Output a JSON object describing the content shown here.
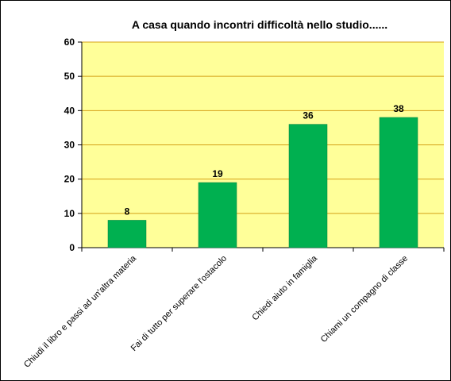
{
  "chart_data": {
    "type": "bar",
    "title": "A casa quando incontri difficoltà nello studio......",
    "xlabel": "",
    "ylabel": "",
    "ylim": [
      0,
      60
    ],
    "yticks": [
      0,
      10,
      20,
      30,
      40,
      50,
      60
    ],
    "grid": true,
    "legend": "none",
    "categories": [
      "Chiudi il libro e passi ad un'altra materia",
      "Fai di tutto per superare l'ostacolo",
      "Chiedi aiuto in famiglia",
      "Chiami un compagno di classe"
    ],
    "values": [
      8,
      19,
      36,
      38
    ],
    "data_labels": [
      "8",
      "19",
      "36",
      "38"
    ],
    "colors": {
      "plot_background": "#FFFF99",
      "bar": "#00B050",
      "grid": "#D4A017",
      "axis": "#000000",
      "frame": "#000000"
    }
  }
}
